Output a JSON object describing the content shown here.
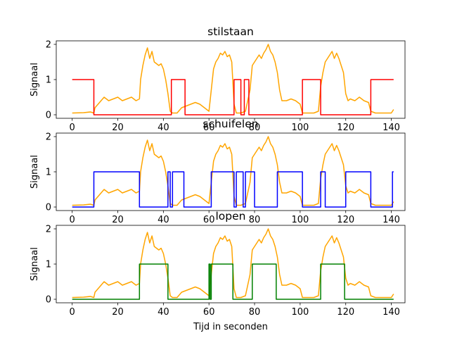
{
  "figure": {
    "xlabel": "Tijd in seconden"
  },
  "chart_data": [
    {
      "type": "line",
      "title": "stilstaan",
      "xlabel": "",
      "ylabel": "Signaal",
      "xlim": [
        -7,
        146
      ],
      "ylim": [
        -0.1,
        2.1
      ],
      "xticks": [
        0,
        20,
        40,
        60,
        80,
        100,
        120,
        140
      ],
      "yticks": [
        0,
        1,
        2
      ],
      "grid": false,
      "series": [
        {
          "color": "#ffa500",
          "values_ref": "accelerometer_signal"
        },
        {
          "color": "#ff0000",
          "kind": "step",
          "x": [
            0,
            9.5,
            9.5,
            43.5,
            43.5,
            49.5,
            49.5,
            71,
            71,
            74,
            74,
            75.5,
            75.5,
            77.5,
            77.5,
            101,
            101,
            109,
            109,
            131,
            131,
            141
          ],
          "y": [
            1,
            1,
            0,
            0,
            1,
            1,
            0,
            0,
            1,
            1,
            0,
            0,
            1,
            1,
            0,
            0,
            1,
            1,
            0,
            0,
            1,
            1
          ]
        }
      ]
    },
    {
      "type": "line",
      "title": "schuifelen",
      "xlabel": "",
      "ylabel": "Signaal",
      "xlim": [
        -7,
        146
      ],
      "ylim": [
        -0.1,
        2.1
      ],
      "xticks": [
        0,
        20,
        40,
        60,
        80,
        100,
        120,
        140
      ],
      "yticks": [
        0,
        1,
        2
      ],
      "grid": false,
      "series": [
        {
          "color": "#ffa500",
          "values_ref": "accelerometer_signal"
        },
        {
          "color": "#0000ff",
          "kind": "step",
          "x": [
            0,
            9.5,
            9.5,
            29.5,
            29.5,
            42,
            42,
            43,
            43,
            44,
            44,
            49,
            49,
            61,
            61,
            71,
            71,
            72,
            72,
            75,
            75,
            76,
            76,
            80,
            80,
            90,
            90,
            101,
            101,
            109,
            109,
            111,
            111,
            120,
            120,
            131,
            131,
            140.5,
            140.5,
            141
          ],
          "y": [
            0,
            0,
            1,
            1,
            0,
            0,
            1,
            1,
            0,
            0,
            1,
            1,
            0,
            0,
            1,
            1,
            0,
            0,
            1,
            1,
            0,
            0,
            1,
            1,
            0,
            0,
            1,
            1,
            0,
            0,
            1,
            1,
            0,
            0,
            1,
            1,
            0,
            0,
            1,
            1
          ]
        }
      ]
    },
    {
      "type": "line",
      "title": "lopen",
      "xlabel": "Tijd in seconden",
      "ylabel": "Signaal",
      "xlim": [
        -7,
        146
      ],
      "ylim": [
        -0.1,
        2.1
      ],
      "xticks": [
        0,
        20,
        40,
        60,
        80,
        100,
        120,
        140
      ],
      "yticks": [
        0,
        1,
        2
      ],
      "grid": false,
      "series": [
        {
          "color": "#ffa500",
          "values_ref": "accelerometer_signal"
        },
        {
          "color": "#008000",
          "kind": "step",
          "x": [
            0,
            29.5,
            29.5,
            42,
            42,
            60,
            60,
            60.5,
            60.5,
            61,
            61,
            70.5,
            70.5,
            79,
            79,
            89.5,
            89.5,
            109,
            109,
            119.5,
            119.5,
            141
          ],
          "y": [
            0,
            0,
            1,
            1,
            0,
            0,
            1,
            1,
            0,
            0,
            1,
            1,
            0,
            0,
            1,
            1,
            0,
            0,
            1,
            1,
            0,
            0
          ]
        }
      ]
    }
  ],
  "accelerometer_signal": {
    "color": "#ffa500",
    "x": [
      0,
      5,
      8,
      9.5,
      10,
      12,
      14,
      16,
      18,
      20,
      22,
      24,
      26,
      28,
      29.5,
      30,
      31,
      32,
      33,
      34,
      35,
      36,
      38,
      39,
      40,
      41,
      42,
      43,
      44,
      46,
      48,
      50,
      52,
      54,
      56,
      58,
      60,
      61,
      62,
      63,
      64,
      65,
      66,
      67,
      68,
      69,
      70,
      71,
      72,
      74,
      76,
      78,
      79,
      80,
      81,
      82,
      83,
      84,
      85,
      86,
      87,
      88,
      89,
      90,
      91,
      92,
      94,
      96,
      98,
      100,
      101,
      102,
      104,
      106,
      108,
      109,
      110,
      111,
      112,
      113,
      114,
      115,
      116,
      117,
      118,
      119,
      120,
      121,
      122,
      124,
      126,
      128,
      130,
      131,
      133,
      135,
      137,
      139,
      140,
      141
    ],
    "y": [
      0.05,
      0.06,
      0.08,
      0.05,
      0.2,
      0.35,
      0.5,
      0.4,
      0.45,
      0.5,
      0.4,
      0.45,
      0.5,
      0.4,
      0.45,
      1.0,
      1.4,
      1.7,
      1.9,
      1.6,
      1.8,
      1.5,
      1.4,
      1.45,
      1.3,
      1.0,
      0.6,
      0.1,
      0.05,
      0.05,
      0.2,
      0.25,
      0.3,
      0.35,
      0.3,
      0.2,
      0.1,
      0.7,
      1.3,
      1.5,
      1.6,
      1.75,
      1.7,
      1.8,
      1.65,
      1.7,
      1.5,
      0.3,
      0.05,
      0.05,
      0.1,
      0.7,
      1.4,
      1.5,
      1.6,
      1.7,
      1.6,
      1.75,
      1.85,
      2.0,
      1.8,
      1.7,
      1.5,
      1.2,
      0.7,
      0.4,
      0.4,
      0.45,
      0.4,
      0.3,
      0.05,
      0.05,
      0.05,
      0.05,
      0.1,
      0.8,
      1.2,
      1.5,
      1.6,
      1.7,
      1.8,
      1.6,
      1.75,
      1.6,
      1.4,
      1.2,
      0.6,
      0.4,
      0.45,
      0.4,
      0.5,
      0.4,
      0.35,
      0.1,
      0.05,
      0.05,
      0.05,
      0.05,
      0.05,
      0.15
    ]
  }
}
